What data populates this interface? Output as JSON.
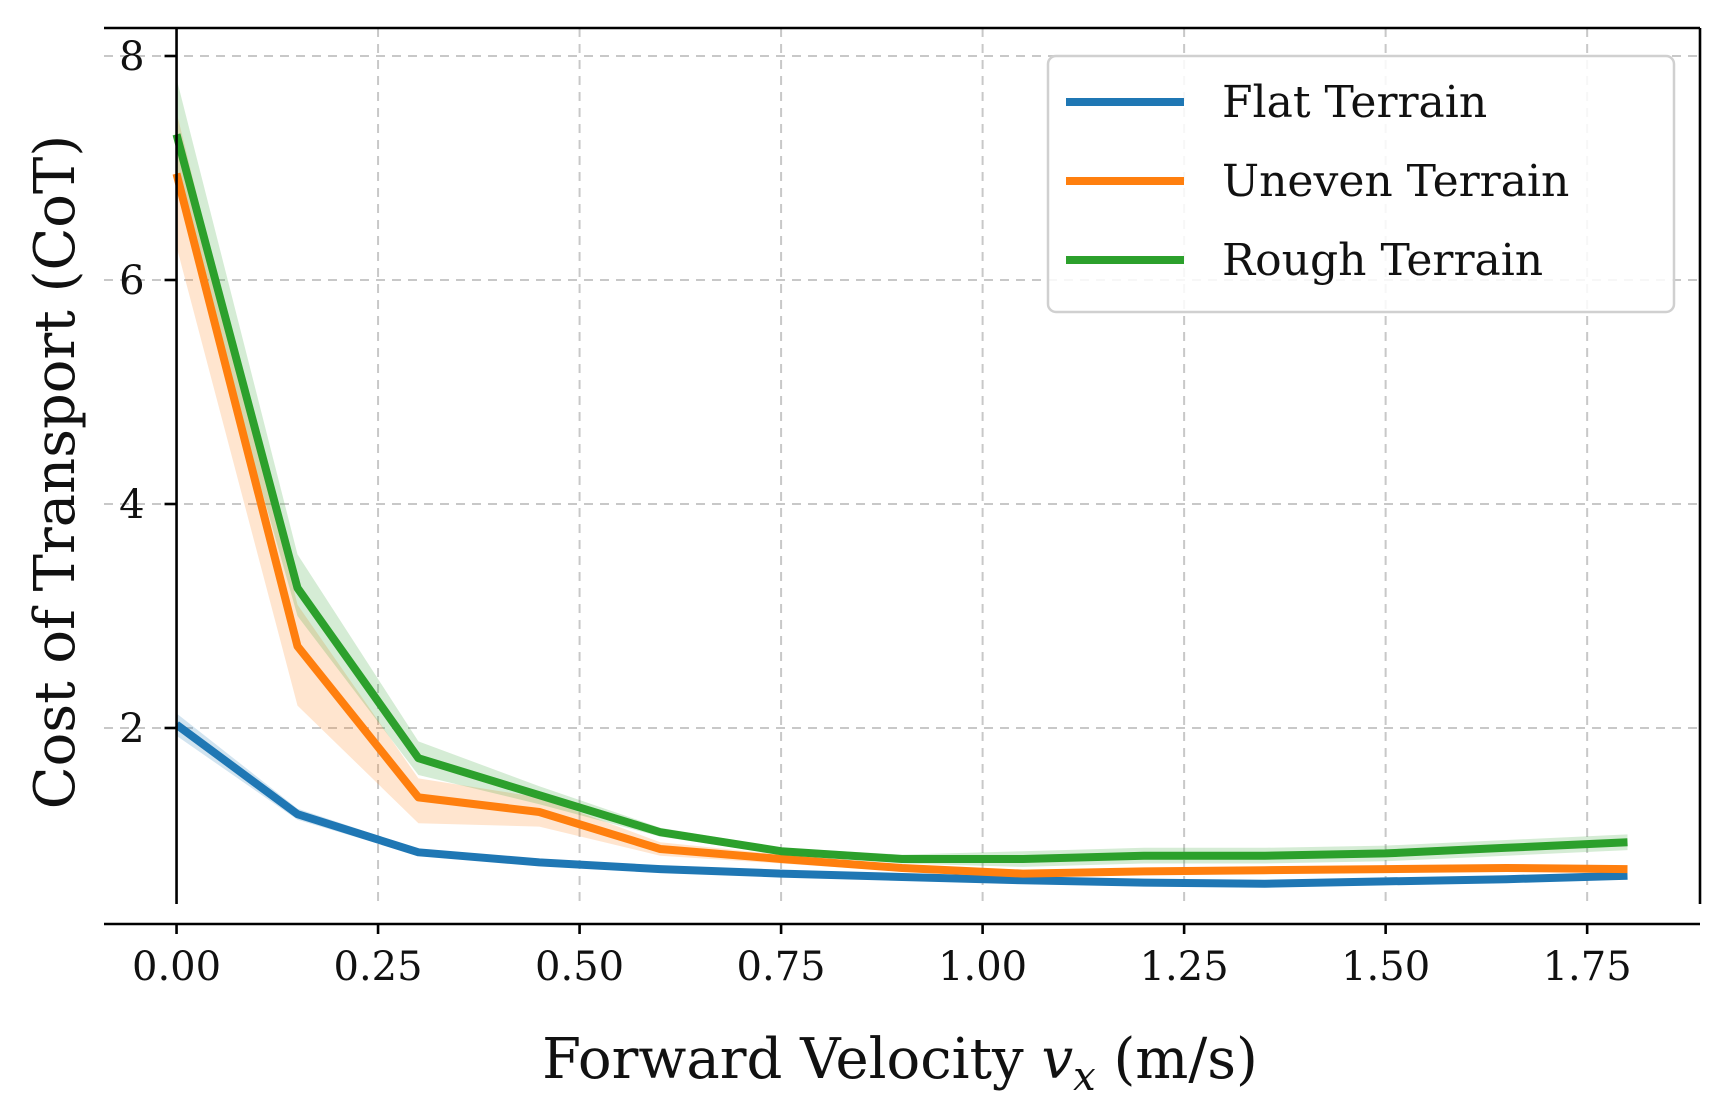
{
  "chart_data": {
    "type": "line",
    "xlabel": "Forward Velocity ",
    "xlabel_var": "v",
    "xlabel_sub": "x",
    "xlabel_unit": " (m/s)",
    "ylabel": "Cost of Transport (CoT)",
    "xlim": [
      -0.09,
      1.89
    ],
    "ylim": [
      0.25,
      8.25
    ],
    "x_ticks": [
      0.0,
      0.25,
      0.5,
      0.75,
      1.0,
      1.25,
      1.5,
      1.75
    ],
    "x_tick_labels": [
      "0.00",
      "0.25",
      "0.50",
      "0.75",
      "1.00",
      "1.25",
      "1.50",
      "1.75"
    ],
    "y_ticks": [
      2,
      4,
      6,
      8
    ],
    "y_tick_labels": [
      "2",
      "4",
      "6",
      "8"
    ],
    "grid": true,
    "legend_position": "top-right",
    "x": [
      0.0,
      0.15,
      0.3,
      0.45,
      0.6,
      0.75,
      0.9,
      1.05,
      1.2,
      1.35,
      1.5,
      1.65,
      1.8
    ],
    "series": [
      {
        "name": "Flat Terrain",
        "color": "#1f77b4",
        "values": [
          2.03,
          1.23,
          0.89,
          0.8,
          0.74,
          0.7,
          0.67,
          0.64,
          0.62,
          0.61,
          0.63,
          0.65,
          0.68
        ],
        "lower": [
          1.93,
          1.18,
          0.86,
          0.78,
          0.72,
          0.68,
          0.65,
          0.62,
          0.6,
          0.59,
          0.61,
          0.63,
          0.66
        ],
        "upper": [
          2.13,
          1.28,
          0.92,
          0.82,
          0.76,
          0.72,
          0.69,
          0.66,
          0.64,
          0.63,
          0.65,
          0.67,
          0.7
        ]
      },
      {
        "name": "Uneven Terrain",
        "color": "#ff7f0e",
        "values": [
          6.95,
          2.73,
          1.38,
          1.25,
          0.92,
          0.83,
          0.75,
          0.7,
          0.72,
          0.73,
          0.74,
          0.75,
          0.74
        ],
        "lower": [
          6.3,
          2.2,
          1.15,
          1.12,
          0.86,
          0.79,
          0.72,
          0.67,
          0.69,
          0.7,
          0.71,
          0.72,
          0.71
        ],
        "upper": [
          7.5,
          3.1,
          1.55,
          1.38,
          0.98,
          0.87,
          0.78,
          0.73,
          0.75,
          0.76,
          0.77,
          0.78,
          0.77
        ]
      },
      {
        "name": "Rough Terrain",
        "color": "#2ca02c",
        "values": [
          7.3,
          3.25,
          1.73,
          1.4,
          1.07,
          0.9,
          0.83,
          0.83,
          0.86,
          0.86,
          0.88,
          0.93,
          0.98
        ],
        "lower": [
          6.8,
          3.0,
          1.58,
          1.32,
          1.03,
          0.87,
          0.79,
          0.76,
          0.79,
          0.79,
          0.81,
          0.86,
          0.91
        ],
        "upper": [
          7.8,
          3.55,
          1.88,
          1.48,
          1.11,
          0.93,
          0.87,
          0.9,
          0.93,
          0.93,
          0.95,
          1.0,
          1.05
        ]
      }
    ]
  }
}
